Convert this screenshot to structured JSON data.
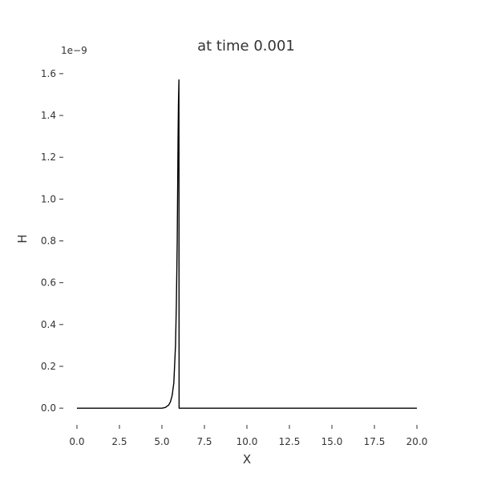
{
  "chart_data": {
    "type": "line",
    "title": "at time 0.001",
    "xlabel": "X",
    "ylabel": "H",
    "y_offset_label": "1e−9",
    "xlim": [
      -0.8,
      20.8
    ],
    "ylim": [
      -0.08,
      1.68
    ],
    "x_ticks": [
      0.0,
      2.5,
      5.0,
      7.5,
      10.0,
      12.5,
      15.0,
      17.5,
      20.0
    ],
    "x_tick_labels": [
      "0.0",
      "2.5",
      "5.0",
      "7.5",
      "10.0",
      "12.5",
      "15.0",
      "17.5",
      "20.0"
    ],
    "y_ticks": [
      0.0,
      0.2,
      0.4,
      0.6,
      0.8,
      1.0,
      1.2,
      1.4,
      1.6
    ],
    "y_tick_labels": [
      "0.0",
      "0.2",
      "0.4",
      "0.6",
      "0.8",
      "1.0",
      "1.2",
      "1.4",
      "1.6"
    ],
    "grid": false,
    "line_color": "#000000",
    "series": [
      {
        "x": [
          0.0,
          5.0,
          5.2,
          5.4,
          5.5,
          5.6,
          5.7,
          5.8,
          5.85,
          5.9,
          5.93,
          5.95,
          5.97,
          6.0,
          6.01,
          6.05,
          20.0
        ],
        "y": [
          0.0,
          0.0,
          0.003,
          0.015,
          0.03,
          0.06,
          0.12,
          0.3,
          0.5,
          0.8,
          1.1,
          1.3,
          1.45,
          1.57,
          0.0,
          0.0,
          0.0
        ]
      }
    ]
  }
}
